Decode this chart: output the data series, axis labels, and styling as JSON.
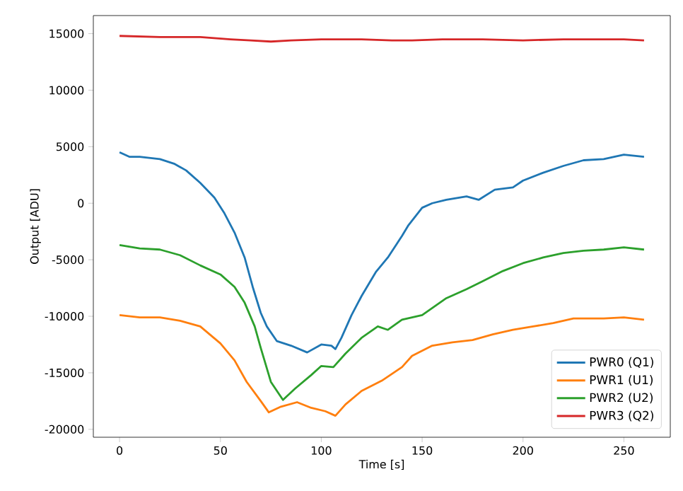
{
  "chart_data": {
    "type": "line",
    "xlabel": "Time [s]",
    "ylabel": "Output [ADU]",
    "xlim": [
      -13,
      273
    ],
    "ylim": [
      -20700,
      16600
    ],
    "xticks": [
      0,
      50,
      100,
      150,
      200,
      250
    ],
    "yticks": [
      -20000,
      -15000,
      -10000,
      -5000,
      0,
      5000,
      10000,
      15000
    ],
    "grid": false,
    "legend": "bottom right",
    "line_style": "solid",
    "series": [
      {
        "name": "PWR0 (Q1)",
        "color": "#1f77b4",
        "x": [
          0,
          5,
          10,
          20,
          27,
          33,
          40,
          47,
          52,
          57,
          62,
          66,
          70,
          73,
          78,
          85,
          93,
          100,
          105,
          107,
          110,
          115,
          120,
          127,
          133,
          140,
          143,
          150,
          155,
          162,
          172,
          178,
          186,
          195,
          200,
          210,
          220,
          230,
          240,
          250,
          260
        ],
        "values": [
          4500,
          4100,
          4100,
          3900,
          3500,
          2900,
          1800,
          500,
          -900,
          -2600,
          -4800,
          -7400,
          -9700,
          -10900,
          -12200,
          -12600,
          -13200,
          -12500,
          -12600,
          -12900,
          -11900,
          -9900,
          -8200,
          -6100,
          -4800,
          -2900,
          -2000,
          -400,
          0,
          300,
          600,
          300,
          1200,
          1400,
          2000,
          2700,
          3300,
          3800,
          3900,
          4300,
          4100
        ]
      },
      {
        "name": "PWR1 (U1)",
        "color": "#ff7f0e",
        "x": [
          0,
          10,
          20,
          30,
          40,
          50,
          57,
          63,
          70,
          74,
          80,
          88,
          95,
          102,
          107,
          112,
          120,
          130,
          140,
          145,
          155,
          165,
          175,
          185,
          195,
          205,
          215,
          225,
          240,
          250,
          260
        ],
        "values": [
          -9900,
          -10100,
          -10100,
          -10400,
          -10900,
          -12400,
          -13900,
          -15800,
          -17500,
          -18500,
          -18000,
          -17600,
          -18100,
          -18400,
          -18800,
          -17800,
          -16600,
          -15700,
          -14500,
          -13500,
          -12600,
          -12300,
          -12100,
          -11600,
          -11200,
          -10900,
          -10600,
          -10200,
          -10200,
          -10100,
          -10300
        ]
      },
      {
        "name": "PWR2 (U2)",
        "color": "#2ca02c",
        "x": [
          0,
          10,
          20,
          30,
          40,
          50,
          57,
          62,
          67,
          70,
          75,
          81,
          87,
          95,
          100,
          106,
          112,
          120,
          128,
          133,
          140,
          150,
          162,
          172,
          180,
          190,
          200,
          210,
          220,
          230,
          240,
          250,
          260
        ],
        "values": [
          -3700,
          -4000,
          -4100,
          -4600,
          -5500,
          -6300,
          -7400,
          -8800,
          -10900,
          -12800,
          -15800,
          -17400,
          -16400,
          -15200,
          -14400,
          -14500,
          -13300,
          -11900,
          -10900,
          -11200,
          -10300,
          -9900,
          -8400,
          -7600,
          -6900,
          -6000,
          -5300,
          -4800,
          -4400,
          -4200,
          -4100,
          -3900,
          -4100
        ]
      },
      {
        "name": "PWR3 (Q2)",
        "color": "#d62728",
        "x": [
          0,
          20,
          40,
          55,
          65,
          75,
          85,
          100,
          120,
          135,
          145,
          160,
          180,
          200,
          220,
          240,
          250,
          260
        ],
        "values": [
          14800,
          14700,
          14700,
          14500,
          14400,
          14300,
          14400,
          14500,
          14500,
          14400,
          14400,
          14500,
          14500,
          14400,
          14500,
          14500,
          14500,
          14400
        ]
      }
    ]
  }
}
